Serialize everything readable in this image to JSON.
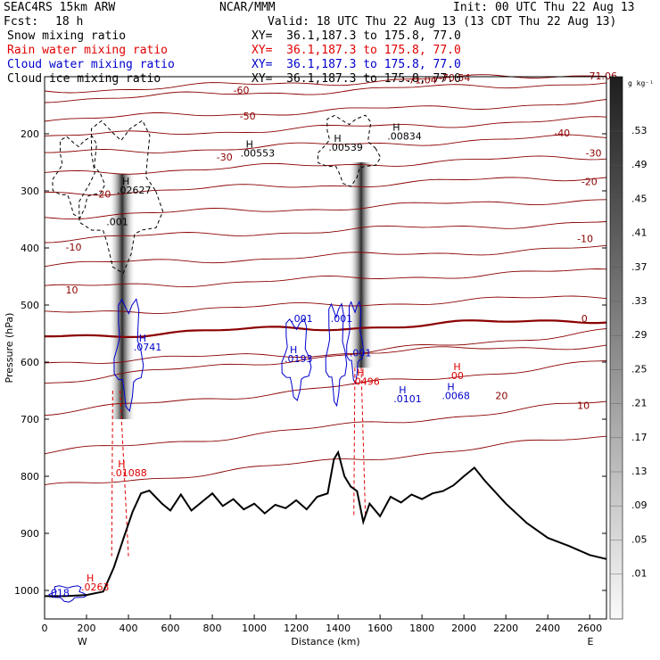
{
  "header": {
    "model": "SEAC4RS 15km ARW",
    "org": "NCAR/MMM",
    "init": "Init: 00 UTC Thu 22 Aug 13",
    "fcst_label": "Fcst:",
    "fcst_value": "18 h",
    "valid": "Valid: 18 UTC Thu 22 Aug 13 (13 CDT Thu 22 Aug 13)"
  },
  "legend": [
    {
      "name": "Snow mixing ratio",
      "xy": "XY=  36.1,187.3 to 175.8, 77.0",
      "color": "#000000"
    },
    {
      "name": "Rain water mixing ratio",
      "xy": "XY=  36.1,187.3 to 175.8, 77.0",
      "color": "#e00000"
    },
    {
      "name": "Cloud water mixing ratio",
      "xy": "XY=  36.1,187.3 to 175.8, 77.0",
      "color": "#0000cc"
    },
    {
      "name": "Cloud ice mixing ratio",
      "xy": "XY=  36.1,187.3 to 175.8, 77.0",
      "color": "#000000"
    }
  ],
  "chart_data": {
    "type": "contour",
    "xlabel": "Distance (km)",
    "ylabel": "Pressure (hPa)",
    "x_ticks": [
      "0",
      "200",
      "400",
      "600",
      "800",
      "1000",
      "1200",
      "1400",
      "1600",
      "1800",
      "2000",
      "2200",
      "2400",
      "2600"
    ],
    "y_ticks": [
      "200",
      "300",
      "400",
      "500",
      "600",
      "700",
      "800",
      "900",
      "1000"
    ],
    "y_tick_values": [
      200,
      300,
      400,
      500,
      600,
      700,
      800,
      900,
      1000
    ],
    "xlim": [
      0,
      2680
    ],
    "ylim": [
      1050,
      100
    ],
    "endpoint_left": "W",
    "endpoint_right": "E",
    "colorbar_unit": "g kg⁻¹",
    "colorbar_labels": [
      ".53",
      ".49",
      ".45",
      ".41",
      ".37",
      ".33",
      ".29",
      ".25",
      ".21",
      ".17",
      ".13",
      ".09",
      ".05",
      ".01"
    ],
    "terrain": {
      "x": [
        0,
        100,
        200,
        280,
        330,
        380,
        420,
        460,
        500,
        560,
        600,
        650,
        700,
        760,
        800,
        850,
        900,
        950,
        1000,
        1050,
        1100,
        1150,
        1200,
        1250,
        1300,
        1350,
        1380,
        1400,
        1430,
        1460,
        1490,
        1520,
        1550,
        1600,
        1650,
        1700,
        1750,
        1800,
        1850,
        1900,
        1950,
        2000,
        2050,
        2100,
        2200,
        2300,
        2400,
        2500,
        2600,
        2680
      ],
      "p": [
        1010,
        1010,
        1008,
        1002,
        960,
        905,
        862,
        830,
        825,
        848,
        860,
        832,
        860,
        842,
        830,
        852,
        840,
        858,
        848,
        865,
        850,
        856,
        842,
        858,
        836,
        830,
        770,
        758,
        800,
        818,
        826,
        880,
        848,
        870,
        836,
        846,
        832,
        840,
        830,
        826,
        816,
        800,
        785,
        808,
        848,
        882,
        908,
        922,
        938,
        945
      ]
    },
    "contour_labels": [
      "-71.06",
      "-71.04",
      "-70.54",
      "-60",
      "-50",
      "-40",
      "-30",
      "-20",
      "-10",
      "0",
      "10",
      "20"
    ],
    "maxima": [
      {
        "label": "H",
        "value": ".02627",
        "x": 370,
        "p": 305
      },
      {
        "label": "",
        "value": ".001",
        "x": 320,
        "p": 360
      },
      {
        "label": "H",
        "value": ".00553",
        "x": 960,
        "p": 240
      },
      {
        "label": "H",
        "value": ".00539",
        "x": 1380,
        "p": 230
      },
      {
        "label": "H",
        "value": ".00834",
        "x": 1660,
        "p": 210
      },
      {
        "label": "H",
        "value": ".0741",
        "x": 450,
        "p": 580
      },
      {
        "label": "H",
        "value": ".0193",
        "x": 1170,
        "p": 600
      },
      {
        "label": "",
        "value": ".001",
        "x": 1200,
        "p": 530
      },
      {
        "label": "",
        "value": ".001",
        "x": 1390,
        "p": 530
      },
      {
        "label": "",
        "value": ".001",
        "x": 1480,
        "p": 590
      },
      {
        "label": "H",
        "value": ".0101",
        "x": 1690,
        "p": 670
      },
      {
        "label": "H",
        "value": ".0068",
        "x": 1920,
        "p": 665
      },
      {
        "label": "H",
        "value": ".0496",
        "x": 1490,
        "p": 640
      },
      {
        "label": "H",
        "value": ".00",
        "x": 1950,
        "p": 630
      },
      {
        "label": "H",
        "value": ".01088",
        "x": 350,
        "p": 800
      },
      {
        "label": "H",
        "value": ".0263",
        "x": 200,
        "p": 1000
      },
      {
        "label": "",
        "value": ".018",
        "x": 40,
        "p": 1010
      }
    ]
  }
}
